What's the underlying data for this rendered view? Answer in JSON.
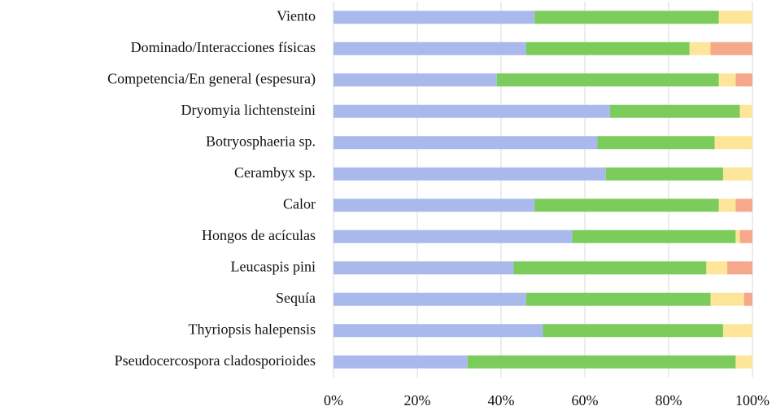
{
  "chart_data": {
    "type": "stacked-bar-horizontal",
    "categories": [
      "Viento",
      "Dominado/Interacciones físicas",
      "Competencia/En general (espesura)",
      "Dryomyia lichtensteini",
      "Botryosphaeria sp.",
      "Cerambyx sp.",
      "Calor",
      "Hongos de acículas",
      "Leucaspis pini",
      "Sequía",
      "Thyriopsis halepensis",
      "Pseudocercospora cladosporioides"
    ],
    "series": [
      {
        "color": "#aab9ec",
        "values": [
          48,
          46,
          39,
          66,
          63,
          65,
          48,
          57,
          43,
          46,
          50,
          32
        ]
      },
      {
        "color": "#7ccc5c",
        "values": [
          44,
          39,
          53,
          31,
          28,
          28,
          44,
          39,
          46,
          44,
          43,
          64
        ]
      },
      {
        "color": "#fde59a",
        "values": [
          8,
          5,
          4,
          3,
          9,
          7,
          4,
          1,
          5,
          8,
          7,
          4
        ]
      },
      {
        "color": "#f5a98a",
        "values": [
          0,
          10,
          4,
          0,
          0,
          0,
          4,
          3,
          6,
          2,
          0,
          0
        ]
      }
    ],
    "xlim": [
      0,
      100
    ],
    "xticks": [
      {
        "value": 0,
        "label": "0%"
      },
      {
        "value": 20,
        "label": "20%"
      },
      {
        "value": 40,
        "label": "40%"
      },
      {
        "value": 60,
        "label": "60%"
      },
      {
        "value": 80,
        "label": "80%"
      },
      {
        "value": 100,
        "label": "100%"
      }
    ],
    "grid": true
  }
}
